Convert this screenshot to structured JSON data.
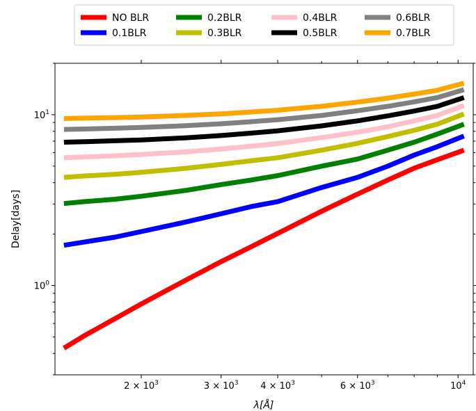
{
  "chart_data": {
    "type": "line",
    "xlabel": "λ[Å]",
    "ylabel": "Delay[days]",
    "xscale": "log",
    "yscale": "log",
    "xlim": [
      1290,
      10800
    ],
    "ylim": [
      0.3,
      20
    ],
    "grid": false,
    "legend_position": "top-center, above plot, 4 columns",
    "x_ticks": [
      {
        "value": 2000,
        "base": "2 × 10",
        "exp": "3"
      },
      {
        "value": 3000,
        "base": "3 × 10",
        "exp": "3"
      },
      {
        "value": 4000,
        "base": "4 × 10",
        "exp": "3"
      },
      {
        "value": 6000,
        "base": "6 × 10",
        "exp": "3"
      },
      {
        "value": 10000,
        "base": "10",
        "exp": "4"
      }
    ],
    "y_ticks": [
      {
        "value": 1,
        "base": "10",
        "exp": "0"
      },
      {
        "value": 10,
        "base": "10",
        "exp": "1"
      }
    ],
    "x": [
      1350,
      1500,
      1750,
      2000,
      2500,
      3000,
      3500,
      4000,
      5000,
      6000,
      7000,
      8000,
      9000,
      10300
    ],
    "series": [
      {
        "name": "NO BLR",
        "color": "#ff0000",
        "values": [
          0.43,
          0.51,
          0.64,
          0.78,
          1.07,
          1.38,
          1.69,
          2.02,
          2.72,
          3.43,
          4.15,
          4.86,
          5.45,
          6.2
        ]
      },
      {
        "name": "0.1BLR",
        "color": "#0000ff",
        "values": [
          1.72,
          1.8,
          1.92,
          2.07,
          2.35,
          2.63,
          2.9,
          3.1,
          3.75,
          4.3,
          5.0,
          5.8,
          6.5,
          7.5
        ]
      },
      {
        "name": "0.2BLR",
        "color": "#008000",
        "values": [
          3.02,
          3.1,
          3.2,
          3.33,
          3.6,
          3.9,
          4.15,
          4.4,
          5.0,
          5.5,
          6.2,
          6.9,
          7.7,
          8.8
        ]
      },
      {
        "name": "0.3BLR",
        "color": "#bfbf00",
        "values": [
          4.3,
          4.38,
          4.48,
          4.6,
          4.85,
          5.12,
          5.38,
          5.6,
          6.2,
          6.8,
          7.45,
          8.1,
          8.8,
          10.1
        ]
      },
      {
        "name": "0.4BLR",
        "color": "#ffc0cb",
        "values": [
          5.6,
          5.66,
          5.75,
          5.85,
          6.05,
          6.3,
          6.55,
          6.78,
          7.35,
          7.9,
          8.5,
          9.2,
          9.9,
          11.3
        ]
      },
      {
        "name": "0.5BLR",
        "color": "#000000",
        "values": [
          6.9,
          6.95,
          7.04,
          7.12,
          7.32,
          7.55,
          7.8,
          8.05,
          8.6,
          9.2,
          9.85,
          10.5,
          11.2,
          12.6
        ]
      },
      {
        "name": "0.6BLR",
        "color": "#808080",
        "values": [
          8.2,
          8.25,
          8.33,
          8.42,
          8.62,
          8.85,
          9.1,
          9.35,
          9.9,
          10.55,
          11.2,
          11.9,
          12.6,
          14.0
        ]
      },
      {
        "name": "0.7BLR",
        "color": "#ffa500",
        "values": [
          9.5,
          9.55,
          9.62,
          9.7,
          9.9,
          10.12,
          10.38,
          10.62,
          11.2,
          11.85,
          12.5,
          13.2,
          13.9,
          15.3
        ]
      }
    ]
  }
}
